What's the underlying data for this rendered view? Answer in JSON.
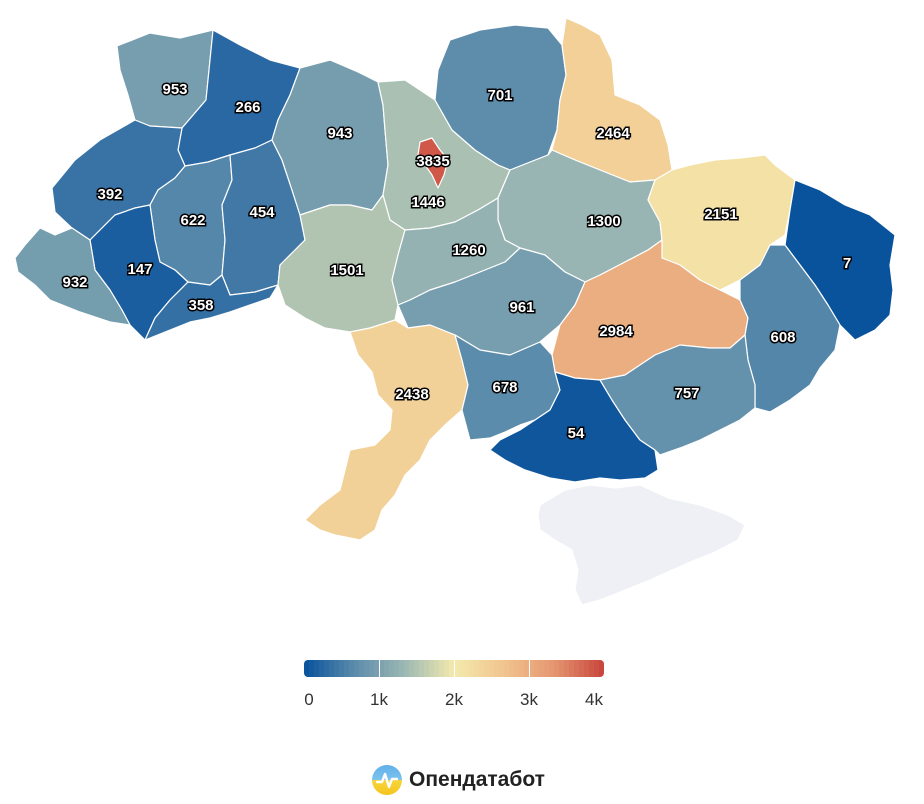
{
  "map": {
    "regions": [
      {
        "id": "volyn",
        "value": 953
      },
      {
        "id": "rivne",
        "value": 266
      },
      {
        "id": "lviv",
        "value": 392
      },
      {
        "id": "ternopil",
        "value": 622
      },
      {
        "id": "khmelnytskyi",
        "value": 454
      },
      {
        "id": "ivano-frankivsk",
        "value": 147
      },
      {
        "id": "zakarpattia",
        "value": 932
      },
      {
        "id": "chernivtsi",
        "value": 358
      },
      {
        "id": "zhytomyr",
        "value": 943
      },
      {
        "id": "kyiv-oblast",
        "value": 1446
      },
      {
        "id": "kyiv-city",
        "value": 3835
      },
      {
        "id": "chernihiv",
        "value": 701
      },
      {
        "id": "sumy",
        "value": 2464
      },
      {
        "id": "poltava",
        "value": 1300
      },
      {
        "id": "kharkiv",
        "value": 2151
      },
      {
        "id": "luhansk",
        "value": 7
      },
      {
        "id": "vinnytsia",
        "value": 1501
      },
      {
        "id": "cherkasy",
        "value": 1260
      },
      {
        "id": "kirovohrad",
        "value": 961
      },
      {
        "id": "dnipropetrovsk",
        "value": 2984
      },
      {
        "id": "donetsk",
        "value": 608
      },
      {
        "id": "odesa",
        "value": 2438
      },
      {
        "id": "mykolaiv",
        "value": 678
      },
      {
        "id": "kherson",
        "value": 54
      },
      {
        "id": "zaporizhzhia",
        "value": 757
      },
      {
        "id": "crimea",
        "value": null
      }
    ],
    "no_data_color": "#eef0f5"
  },
  "legend": {
    "min": 0,
    "max": 4000,
    "colors": [
      "#08519c",
      "#5b8bab",
      "#9bb7b3",
      "#f3eaad",
      "#f1c48e",
      "#e59671",
      "#c8443b"
    ],
    "ticks": [
      {
        "value": 0,
        "label": "0"
      },
      {
        "value": 1000,
        "label": "1k"
      },
      {
        "value": 2000,
        "label": "2k"
      },
      {
        "value": 3000,
        "label": "3k"
      },
      {
        "value": 4000,
        "label": "4k"
      }
    ]
  },
  "brand": {
    "name": "Опендатабот",
    "logo_icon": "opendatabot-logo-icon"
  }
}
